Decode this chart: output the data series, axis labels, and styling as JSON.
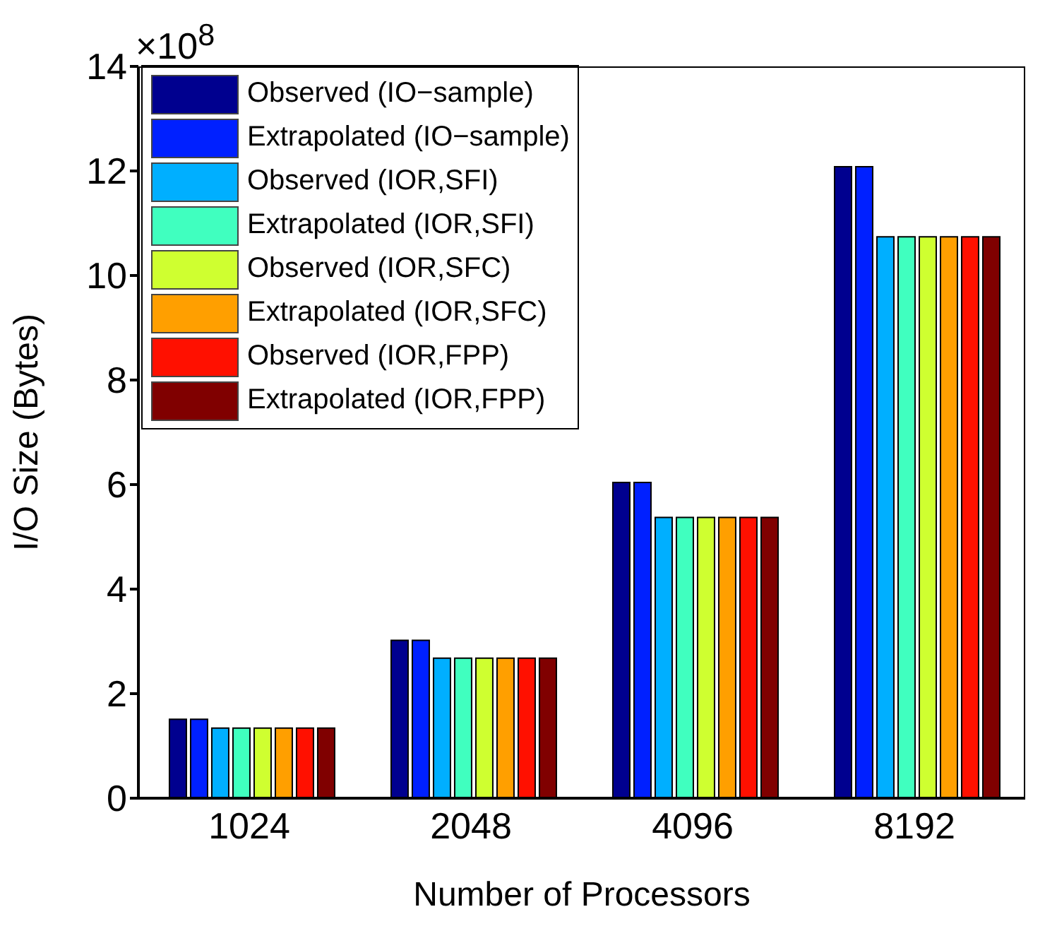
{
  "chart_data": {
    "type": "bar",
    "xlabel": "Number of Processors",
    "ylabel": "I/O Size (Bytes)",
    "annotations": [
      "×10$^{8}$"
    ],
    "categories": [
      "1024",
      "2048",
      "4096",
      "8192"
    ],
    "series": [
      {
        "name": "Observed (IO−sample)",
        "color": "#00008f",
        "values": [
          1.51,
          3.02,
          6.04,
          12.08
        ]
      },
      {
        "name": "Extrapolated (IO−sample)",
        "color": "#0020ff",
        "values": [
          1.51,
          3.02,
          6.04,
          12.08
        ]
      },
      {
        "name": "Observed (IOR,SFI)",
        "color": "#00afff",
        "values": [
          1.34,
          2.68,
          5.37,
          10.74
        ]
      },
      {
        "name": "Extrapolated (IOR,SFI)",
        "color": "#40ffbf",
        "values": [
          1.34,
          2.68,
          5.37,
          10.74
        ]
      },
      {
        "name": "Observed (IOR,SFC)",
        "color": "#cfff30",
        "values": [
          1.34,
          2.68,
          5.37,
          10.74
        ]
      },
      {
        "name": "Extrapolated (IOR,SFC)",
        "color": "#ff9f00",
        "values": [
          1.34,
          2.68,
          5.37,
          10.74
        ]
      },
      {
        "name": "Observed (IOR,FPP)",
        "color": "#ff1000",
        "values": [
          1.34,
          2.68,
          5.37,
          10.74
        ]
      },
      {
        "name": "Extrapolated (IOR,FPP)",
        "color": "#800000",
        "values": [
          1.34,
          2.68,
          5.37,
          10.74
        ]
      }
    ],
    "ylim": [
      0,
      14
    ],
    "yticks": [
      0,
      2,
      4,
      6,
      8,
      10,
      12,
      14
    ],
    "grid": false,
    "legend": "top left"
  }
}
